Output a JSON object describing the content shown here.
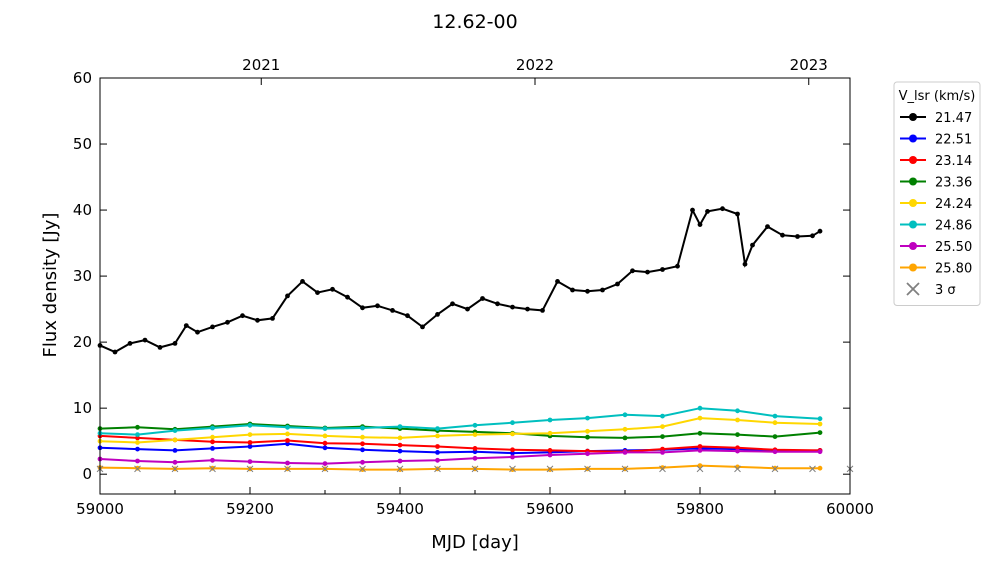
{
  "chart_data": {
    "type": "line",
    "title": "12.62-00",
    "xlabel": "MJD [day]",
    "ylabel": "Flux density [Jy]",
    "xlim": [
      59000,
      60000
    ],
    "ylim": [
      -3,
      60
    ],
    "x_ticks": [
      59000,
      59200,
      59400,
      59600,
      59800,
      60000
    ],
    "x_tick_labels": [
      "59000",
      "59200",
      "59400",
      "59600",
      "59800",
      "60000"
    ],
    "y_ticks": [
      0,
      10,
      20,
      30,
      40,
      50,
      60
    ],
    "y_tick_labels": [
      "0",
      "10",
      "20",
      "30",
      "40",
      "50",
      "60"
    ],
    "top_axis": {
      "ticks": [
        59215,
        59580,
        59945
      ],
      "labels": [
        "2021",
        "2022",
        "2023"
      ]
    },
    "legend": {
      "title": "V_lsr (km/s)",
      "placement": "outside-right",
      "entries": [
        "21.47",
        "22.51",
        "23.14",
        "23.36",
        "24.24",
        "24.86",
        "25.50",
        "25.80",
        "3 σ"
      ]
    },
    "sigma_label": "3 σ",
    "series": [
      {
        "name": "21.47",
        "color": "#000000",
        "x": [
          59000,
          59020,
          59040,
          59060,
          59080,
          59100,
          59115,
          59130,
          59150,
          59170,
          59190,
          59210,
          59230,
          59250,
          59270,
          59290,
          59310,
          59330,
          59350,
          59370,
          59390,
          59410,
          59430,
          59450,
          59470,
          59490,
          59510,
          59530,
          59550,
          59570,
          59590,
          59610,
          59630,
          59650,
          59670,
          59690,
          59710,
          59730,
          59750,
          59770,
          59790,
          59800,
          59810,
          59830,
          59850,
          59860,
          59870,
          59890,
          59910,
          59930,
          59950,
          59960
        ],
        "y": [
          19.5,
          18.5,
          19.8,
          20.3,
          19.2,
          19.8,
          22.5,
          21.5,
          22.3,
          23.0,
          24.0,
          23.3,
          23.6,
          27.0,
          29.2,
          27.5,
          28.0,
          26.8,
          25.2,
          25.5,
          24.8,
          24.0,
          22.3,
          24.2,
          25.8,
          25.0,
          26.6,
          25.8,
          25.3,
          25.0,
          24.8,
          29.2,
          27.9,
          27.7,
          27.9,
          28.8,
          30.8,
          30.6,
          31.0,
          31.5,
          40.0,
          37.8,
          39.8,
          40.2,
          39.4,
          31.8,
          34.7,
          37.5,
          36.2,
          36.0,
          36.1,
          36.8
        ]
      },
      {
        "name": "22.51",
        "color": "#0000ff",
        "x": [
          59000,
          59050,
          59100,
          59150,
          59200,
          59250,
          59300,
          59350,
          59400,
          59450,
          59500,
          59550,
          59600,
          59650,
          59700,
          59750,
          59800,
          59850,
          59900,
          59960
        ],
        "y": [
          4.0,
          3.8,
          3.6,
          3.9,
          4.2,
          4.6,
          4.0,
          3.7,
          3.5,
          3.3,
          3.4,
          3.2,
          3.3,
          3.5,
          3.6,
          3.7,
          3.9,
          3.8,
          3.5,
          3.6
        ]
      },
      {
        "name": "23.14",
        "color": "#ff0000",
        "x": [
          59000,
          59050,
          59100,
          59150,
          59200,
          59250,
          59300,
          59350,
          59400,
          59450,
          59500,
          59550,
          59600,
          59650,
          59700,
          59750,
          59800,
          59850,
          59900,
          59960
        ],
        "y": [
          5.8,
          5.5,
          5.2,
          4.9,
          4.8,
          5.1,
          4.7,
          4.6,
          4.4,
          4.2,
          3.9,
          3.7,
          3.6,
          3.5,
          3.4,
          3.8,
          4.2,
          4.0,
          3.7,
          3.6
        ]
      },
      {
        "name": "23.36",
        "color": "#008000",
        "x": [
          59000,
          59050,
          59100,
          59150,
          59200,
          59250,
          59300,
          59350,
          59400,
          59450,
          59500,
          59550,
          59600,
          59650,
          59700,
          59750,
          59800,
          59850,
          59900,
          59960
        ],
        "y": [
          6.9,
          7.1,
          6.8,
          7.2,
          7.6,
          7.3,
          7.0,
          7.2,
          6.9,
          6.6,
          6.4,
          6.2,
          5.8,
          5.6,
          5.5,
          5.7,
          6.2,
          6.0,
          5.7,
          6.3
        ]
      },
      {
        "name": "24.24",
        "color": "#ffd700",
        "x": [
          59000,
          59050,
          59100,
          59150,
          59200,
          59250,
          59300,
          59350,
          59400,
          59450,
          59500,
          59550,
          59600,
          59650,
          59700,
          59750,
          59800,
          59850,
          59900,
          59960
        ],
        "y": [
          5.0,
          4.8,
          5.2,
          5.6,
          6.0,
          6.1,
          5.8,
          5.6,
          5.5,
          5.8,
          6.0,
          6.1,
          6.2,
          6.5,
          6.8,
          7.2,
          8.5,
          8.2,
          7.8,
          7.6
        ]
      },
      {
        "name": "24.86",
        "color": "#00bfbf",
        "x": [
          59000,
          59050,
          59100,
          59150,
          59200,
          59250,
          59300,
          59350,
          59400,
          59450,
          59500,
          59550,
          59600,
          59650,
          59700,
          59750,
          59800,
          59850,
          59900,
          59960
        ],
        "y": [
          6.2,
          6.0,
          6.6,
          7.0,
          7.4,
          7.1,
          6.9,
          7.0,
          7.2,
          6.9,
          7.4,
          7.8,
          8.2,
          8.5,
          9.0,
          8.8,
          10.0,
          9.6,
          8.8,
          8.4
        ]
      },
      {
        "name": "25.50",
        "color": "#bf00bf",
        "x": [
          59000,
          59050,
          59100,
          59150,
          59200,
          59250,
          59300,
          59350,
          59400,
          59450,
          59500,
          59550,
          59600,
          59650,
          59700,
          59750,
          59800,
          59850,
          59900,
          59960
        ],
        "y": [
          2.3,
          2.0,
          1.8,
          2.1,
          1.9,
          1.7,
          1.6,
          1.8,
          2.0,
          2.1,
          2.4,
          2.6,
          2.9,
          3.1,
          3.3,
          3.3,
          3.6,
          3.5,
          3.4,
          3.4
        ]
      },
      {
        "name": "25.80",
        "color": "#ffa500",
        "x": [
          59000,
          59050,
          59100,
          59150,
          59200,
          59250,
          59300,
          59350,
          59400,
          59450,
          59500,
          59550,
          59600,
          59650,
          59700,
          59750,
          59800,
          59850,
          59900,
          59960
        ],
        "y": [
          1.0,
          0.9,
          0.8,
          0.9,
          0.8,
          0.8,
          0.8,
          0.7,
          0.7,
          0.8,
          0.8,
          0.7,
          0.7,
          0.8,
          0.8,
          1.0,
          1.3,
          1.1,
          0.9,
          0.9
        ]
      }
    ],
    "sigma": {
      "name": "3 σ",
      "color": "#808080",
      "value": 0.8
    },
    "grid": false
  }
}
